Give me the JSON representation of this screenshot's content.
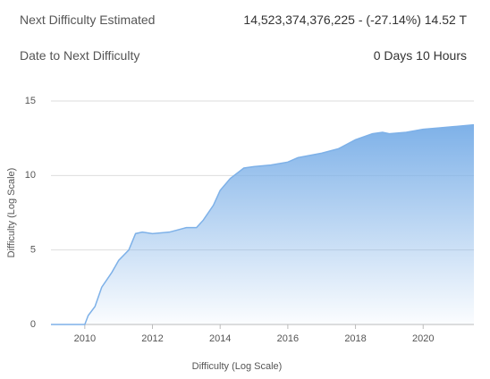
{
  "header": {
    "rows": [
      {
        "label": "Next Difficulty Estimated",
        "value": "14,523,374,376,225 - (-27.14%) 14.52 T"
      },
      {
        "label": "Date to Next Difficulty",
        "value": "0 Days 10 Hours"
      }
    ]
  },
  "chart_data": {
    "type": "area",
    "xlabel": "Difficulty (Log Scale)",
    "ylabel": "Difficulty (Log Scale)",
    "x": [
      2009.0,
      2010.0,
      2010.1,
      2010.3,
      2010.5,
      2010.8,
      2011.0,
      2011.3,
      2011.5,
      2011.7,
      2012.0,
      2012.5,
      2013.0,
      2013.3,
      2013.5,
      2013.8,
      2014.0,
      2014.3,
      2014.7,
      2015.0,
      2015.5,
      2016.0,
      2016.3,
      2017.0,
      2017.5,
      2018.0,
      2018.5,
      2018.8,
      2019.0,
      2019.5,
      2020.0,
      2020.5,
      2021.0,
      2021.5
    ],
    "values": [
      0,
      0,
      0.6,
      1.2,
      2.5,
      3.5,
      4.3,
      5.0,
      6.1,
      6.2,
      6.1,
      6.2,
      6.5,
      6.5,
      7.0,
      8.0,
      9.0,
      9.8,
      10.5,
      10.6,
      10.7,
      10.9,
      11.2,
      11.5,
      11.8,
      12.4,
      12.8,
      12.9,
      12.8,
      12.9,
      13.1,
      13.2,
      13.3,
      13.4
    ],
    "color": "#7eb1e8",
    "xlim": [
      2009,
      2021.5
    ],
    "xticks": [
      2010,
      2012,
      2014,
      2016,
      2018,
      2020
    ],
    "ylim": [
      0,
      15
    ],
    "yticks": [
      0,
      5,
      10,
      15
    ],
    "grid": true
  }
}
